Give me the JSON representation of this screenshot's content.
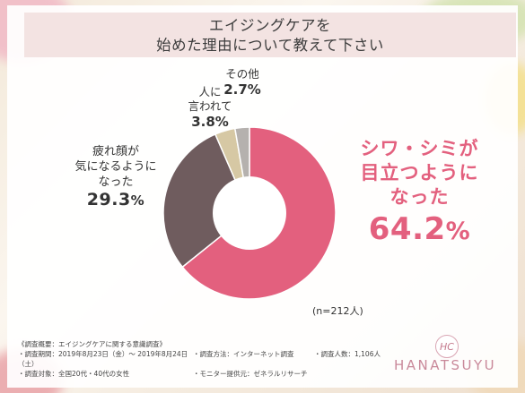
{
  "title": {
    "line1": "エイジングケアを",
    "line2": "始めた理由について教えて下さい"
  },
  "chart_data": {
    "type": "pie",
    "style": "donut",
    "slices": [
      {
        "label": "シワ・シミが目立つようになった",
        "value": 64.2,
        "display": "64.2",
        "color": "#e3607e"
      },
      {
        "label": "疲れ顔が気になるようになった",
        "value": 29.3,
        "display": "29.3",
        "color": "#6f5c5e"
      },
      {
        "label": "人に言われて",
        "value": 3.8,
        "display": "3.8",
        "color": "#d6c8a4"
      },
      {
        "label": "その他",
        "value": 2.7,
        "display": "2.7",
        "color": "#b5b1ae"
      }
    ],
    "unit": "%",
    "note": "(n=212人)"
  },
  "labels": {
    "shiwa": {
      "l1": "シワ・シミが",
      "l2": "目立つように",
      "l3": "なった"
    },
    "tsukare": {
      "l1": "疲れ顔が",
      "l2": "気になるように",
      "l3": "なった"
    },
    "hito": {
      "l1": "人に",
      "l2": "言われて"
    },
    "sonota": {
      "l1": "その他"
    }
  },
  "survey": {
    "header": "《調査概要：エイジングケアに関する意識調査》",
    "period": "・調査期間：2019年8月23日（金）～ 2019年8月24日（土）",
    "target": "・調査対象：全国20代・40代の女性",
    "method": "・調査方法：インターネット調査",
    "provider": "・モニター提供元：ゼネラルリサーチ",
    "count": "・調査人数：1,106人"
  },
  "brand": {
    "name": "HANATSUYU",
    "mark": "HC"
  }
}
